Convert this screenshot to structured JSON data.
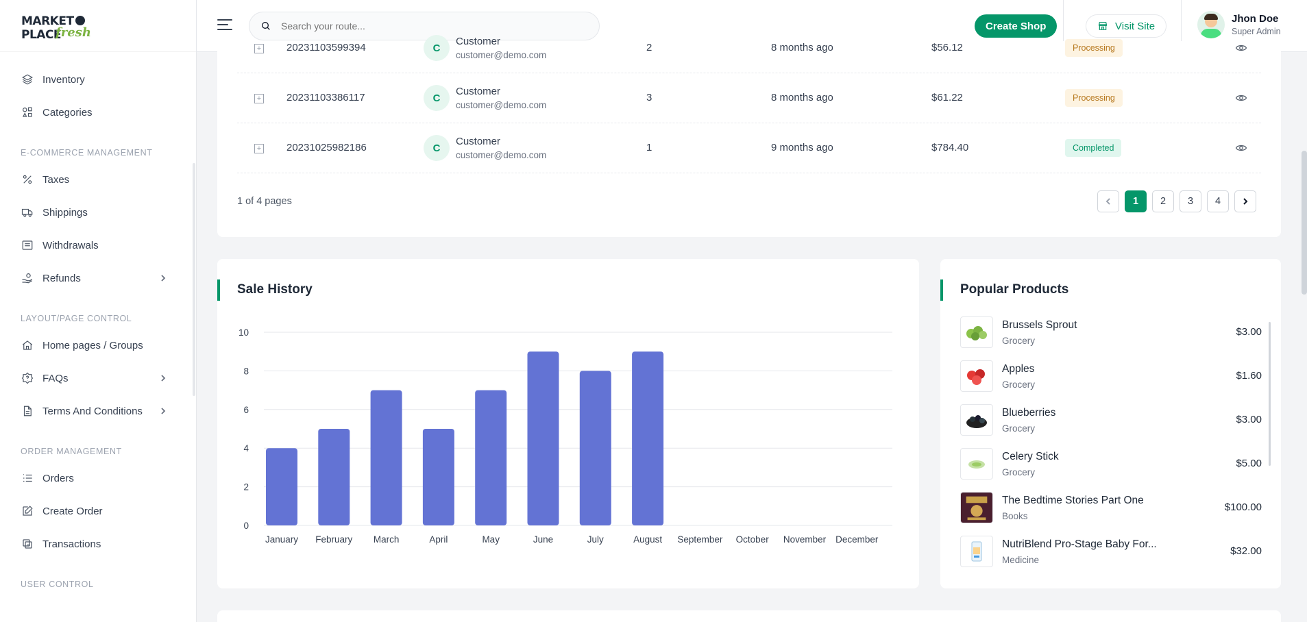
{
  "brand": {
    "logo_top": "MARKET PLACE",
    "logo_bottom": "fresh"
  },
  "sidebar": {
    "items_top": [
      {
        "label": "Inventory",
        "icon": "layers-icon"
      },
      {
        "label": "Categories",
        "icon": "shapes-icon"
      }
    ],
    "sections": [
      {
        "title": "E-COMMERCE MANAGEMENT",
        "items": [
          {
            "label": "Taxes",
            "icon": "percent-icon",
            "chevron": false
          },
          {
            "label": "Shippings",
            "icon": "truck-icon",
            "chevron": false
          },
          {
            "label": "Withdrawals",
            "icon": "receipt-icon",
            "chevron": false
          },
          {
            "label": "Refunds",
            "icon": "refund-hand-icon",
            "chevron": true
          }
        ]
      },
      {
        "title": "LAYOUT/PAGE CONTROL",
        "items": [
          {
            "label": "Home pages / Groups",
            "icon": "home-icon",
            "chevron": false
          },
          {
            "label": "FAQs",
            "icon": "help-badge-icon",
            "chevron": true
          },
          {
            "label": "Terms And Conditions",
            "icon": "document-icon",
            "chevron": true
          }
        ]
      },
      {
        "title": "ORDER MANAGEMENT",
        "items": [
          {
            "label": "Orders",
            "icon": "list-ordered-icon",
            "chevron": false
          },
          {
            "label": "Create Order",
            "icon": "edit-icon",
            "chevron": false
          },
          {
            "label": "Transactions",
            "icon": "transfer-icon",
            "chevron": false
          }
        ]
      },
      {
        "title": "USER CONTROL",
        "items": []
      }
    ]
  },
  "header": {
    "search_placeholder": "Search your route...",
    "create_shop": "Create Shop",
    "visit_site": "Visit Site",
    "user_name": "Jhon Doe",
    "user_role": "Super Admin"
  },
  "orders": {
    "rows": [
      {
        "id": "20231103599394",
        "avatar": "C",
        "name": "Customer",
        "email": "customer@demo.com",
        "qty": "2",
        "time": "8 months ago",
        "amount": "$56.12",
        "status": "Processing",
        "status_type": "processing"
      },
      {
        "id": "20231103386117",
        "avatar": "C",
        "name": "Customer",
        "email": "customer@demo.com",
        "qty": "3",
        "time": "8 months ago",
        "amount": "$61.22",
        "status": "Processing",
        "status_type": "processing"
      },
      {
        "id": "20231025982186",
        "avatar": "C",
        "name": "Customer",
        "email": "customer@demo.com",
        "qty": "1",
        "time": "9 months ago",
        "amount": "$784.40",
        "status": "Completed",
        "status_type": "completed"
      }
    ],
    "pages_info": "1 of 4 pages",
    "pages": [
      "1",
      "2",
      "3",
      "4"
    ],
    "current_page": "1"
  },
  "sale_history": {
    "title": "Sale History"
  },
  "chart_data": {
    "type": "bar",
    "title": "Sale History",
    "categories": [
      "January",
      "February",
      "March",
      "April",
      "May",
      "June",
      "July",
      "August",
      "September",
      "October",
      "November",
      "December"
    ],
    "values": [
      4,
      5,
      7,
      5,
      7,
      9,
      8,
      9,
      0,
      0,
      0,
      0
    ],
    "ylim": [
      0,
      10
    ],
    "yticks": [
      "0",
      "2",
      "4",
      "6",
      "8",
      "10"
    ],
    "bar_color": "#6373d4",
    "grid": true,
    "xlabel": "",
    "ylabel": ""
  },
  "popular": {
    "title": "Popular Products",
    "items": [
      {
        "name": "Brussels Sprout",
        "category": "Grocery",
        "price": "$3.00",
        "thumb": "brussels-sprout-thumb"
      },
      {
        "name": "Apples",
        "category": "Grocery",
        "price": "$1.60",
        "thumb": "apples-thumb"
      },
      {
        "name": "Blueberries",
        "category": "Grocery",
        "price": "$3.00",
        "thumb": "blueberries-thumb"
      },
      {
        "name": "Celery Stick",
        "category": "Grocery",
        "price": "$5.00",
        "thumb": "celery-thumb"
      },
      {
        "name": "The Bedtime Stories Part One",
        "category": "Books",
        "price": "$100.00",
        "thumb": "book-cover-thumb"
      },
      {
        "name": "NutriBlend Pro-Stage Baby For...",
        "category": "Medicine",
        "price": "$32.00",
        "thumb": "baby-formula-thumb"
      }
    ]
  },
  "colors": {
    "accent": "#059669",
    "bar": "#6373d4"
  }
}
